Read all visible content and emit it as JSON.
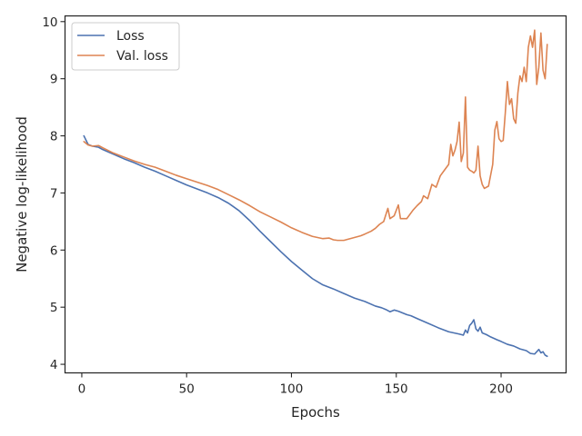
{
  "chart_data": {
    "type": "line",
    "title": "",
    "xlabel": "Epochs",
    "ylabel": "Negative log-likelihood",
    "xlim": [
      -8,
      231
    ],
    "ylim": [
      3.85,
      10.1
    ],
    "x_ticks": [
      0,
      50,
      100,
      150,
      200
    ],
    "y_ticks": [
      4,
      5,
      6,
      7,
      8,
      9,
      10
    ],
    "grid": false,
    "legend_position": "top-left",
    "series": [
      {
        "name": "Loss",
        "color": "#4c72b0",
        "points": [
          [
            1,
            8.0
          ],
          [
            3,
            7.85
          ],
          [
            5,
            7.82
          ],
          [
            8,
            7.8
          ],
          [
            10,
            7.76
          ],
          [
            15,
            7.68
          ],
          [
            20,
            7.6
          ],
          [
            25,
            7.53
          ],
          [
            30,
            7.45
          ],
          [
            35,
            7.38
          ],
          [
            40,
            7.3
          ],
          [
            45,
            7.22
          ],
          [
            50,
            7.14
          ],
          [
            55,
            7.07
          ],
          [
            60,
            7.0
          ],
          [
            65,
            6.92
          ],
          [
            70,
            6.82
          ],
          [
            75,
            6.69
          ],
          [
            80,
            6.52
          ],
          [
            85,
            6.33
          ],
          [
            90,
            6.15
          ],
          [
            95,
            5.97
          ],
          [
            100,
            5.8
          ],
          [
            105,
            5.65
          ],
          [
            110,
            5.5
          ],
          [
            115,
            5.39
          ],
          [
            120,
            5.32
          ],
          [
            125,
            5.24
          ],
          [
            130,
            5.16
          ],
          [
            135,
            5.1
          ],
          [
            140,
            5.02
          ],
          [
            143,
            4.99
          ],
          [
            145,
            4.96
          ],
          [
            147,
            4.92
          ],
          [
            149,
            4.95
          ],
          [
            151,
            4.93
          ],
          [
            153,
            4.9
          ],
          [
            155,
            4.87
          ],
          [
            157,
            4.85
          ],
          [
            160,
            4.8
          ],
          [
            165,
            4.72
          ],
          [
            170,
            4.64
          ],
          [
            175,
            4.57
          ],
          [
            180,
            4.53
          ],
          [
            182,
            4.51
          ],
          [
            183,
            4.6
          ],
          [
            184,
            4.55
          ],
          [
            185,
            4.68
          ],
          [
            186,
            4.72
          ],
          [
            187,
            4.78
          ],
          [
            188,
            4.62
          ],
          [
            189,
            4.58
          ],
          [
            190,
            4.65
          ],
          [
            191,
            4.55
          ],
          [
            193,
            4.52
          ],
          [
            195,
            4.48
          ],
          [
            198,
            4.43
          ],
          [
            200,
            4.4
          ],
          [
            203,
            4.35
          ],
          [
            206,
            4.32
          ],
          [
            209,
            4.27
          ],
          [
            212,
            4.24
          ],
          [
            214,
            4.19
          ],
          [
            216,
            4.18
          ],
          [
            218,
            4.26
          ],
          [
            219,
            4.2
          ],
          [
            220,
            4.22
          ],
          [
            221,
            4.16
          ],
          [
            222,
            4.14
          ]
        ]
      },
      {
        "name": "Val. loss",
        "color": "#dd8452",
        "points": [
          [
            1,
            7.9
          ],
          [
            3,
            7.84
          ],
          [
            5,
            7.82
          ],
          [
            8,
            7.83
          ],
          [
            10,
            7.79
          ],
          [
            15,
            7.7
          ],
          [
            20,
            7.63
          ],
          [
            25,
            7.56
          ],
          [
            30,
            7.5
          ],
          [
            35,
            7.45
          ],
          [
            40,
            7.38
          ],
          [
            45,
            7.31
          ],
          [
            50,
            7.25
          ],
          [
            55,
            7.19
          ],
          [
            60,
            7.13
          ],
          [
            65,
            7.06
          ],
          [
            70,
            6.97
          ],
          [
            75,
            6.88
          ],
          [
            80,
            6.78
          ],
          [
            85,
            6.67
          ],
          [
            90,
            6.58
          ],
          [
            95,
            6.49
          ],
          [
            100,
            6.39
          ],
          [
            105,
            6.31
          ],
          [
            110,
            6.24
          ],
          [
            115,
            6.2
          ],
          [
            118,
            6.21
          ],
          [
            120,
            6.18
          ],
          [
            122,
            6.17
          ],
          [
            125,
            6.17
          ],
          [
            128,
            6.2
          ],
          [
            130,
            6.22
          ],
          [
            133,
            6.25
          ],
          [
            135,
            6.28
          ],
          [
            138,
            6.33
          ],
          [
            140,
            6.38
          ],
          [
            142,
            6.45
          ],
          [
            144,
            6.5
          ],
          [
            146,
            6.73
          ],
          [
            147,
            6.55
          ],
          [
            149,
            6.6
          ],
          [
            151,
            6.79
          ],
          [
            152,
            6.55
          ],
          [
            155,
            6.55
          ],
          [
            158,
            6.7
          ],
          [
            160,
            6.78
          ],
          [
            162,
            6.85
          ],
          [
            163,
            6.95
          ],
          [
            165,
            6.9
          ],
          [
            167,
            7.15
          ],
          [
            169,
            7.1
          ],
          [
            171,
            7.3
          ],
          [
            173,
            7.4
          ],
          [
            175,
            7.5
          ],
          [
            176,
            7.85
          ],
          [
            177,
            7.65
          ],
          [
            178,
            7.75
          ],
          [
            179,
            7.9
          ],
          [
            180,
            8.24
          ],
          [
            181,
            7.55
          ],
          [
            182,
            7.7
          ],
          [
            183,
            8.68
          ],
          [
            184,
            7.45
          ],
          [
            185,
            7.4
          ],
          [
            186,
            7.38
          ],
          [
            187,
            7.35
          ],
          [
            188,
            7.4
          ],
          [
            189,
            7.82
          ],
          [
            190,
            7.3
          ],
          [
            191,
            7.15
          ],
          [
            192,
            7.08
          ],
          [
            194,
            7.12
          ],
          [
            196,
            7.5
          ],
          [
            197,
            8.1
          ],
          [
            198,
            8.25
          ],
          [
            199,
            7.95
          ],
          [
            200,
            7.9
          ],
          [
            201,
            7.92
          ],
          [
            202,
            8.4
          ],
          [
            203,
            8.95
          ],
          [
            204,
            8.55
          ],
          [
            205,
            8.65
          ],
          [
            206,
            8.3
          ],
          [
            207,
            8.22
          ],
          [
            208,
            8.75
          ],
          [
            209,
            9.05
          ],
          [
            210,
            8.95
          ],
          [
            211,
            9.2
          ],
          [
            212,
            8.95
          ],
          [
            213,
            9.55
          ],
          [
            214,
            9.75
          ],
          [
            215,
            9.55
          ],
          [
            216,
            9.85
          ],
          [
            217,
            8.9
          ],
          [
            218,
            9.2
          ],
          [
            219,
            9.8
          ],
          [
            220,
            9.15
          ],
          [
            221,
            9.0
          ],
          [
            222,
            9.6
          ]
        ]
      }
    ]
  }
}
